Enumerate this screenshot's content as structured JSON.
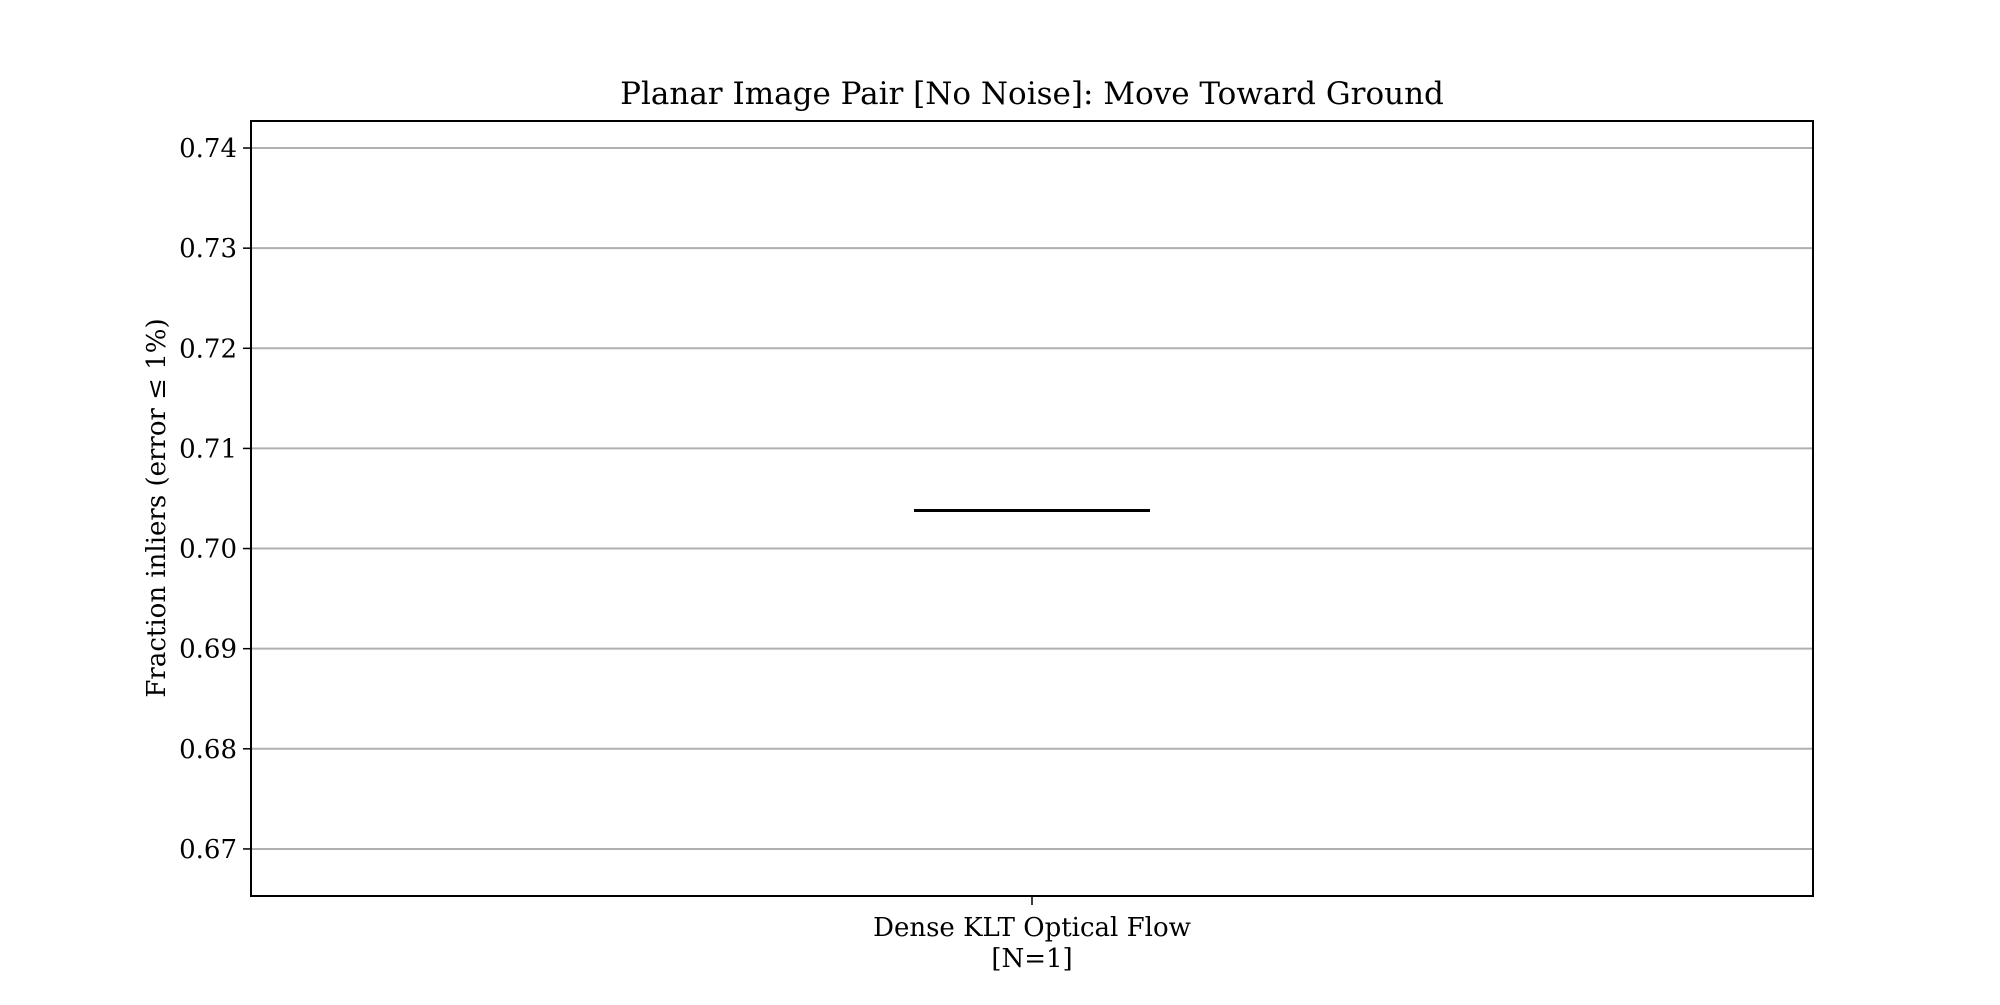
{
  "chart_data": {
    "type": "box",
    "title": "Planar Image Pair [No Noise]: Move Toward Ground",
    "ylabel": "Fraction inliers (error ≤ 1%)",
    "xlabel": "",
    "ylim": [
      0.6653,
      0.7427
    ],
    "yticks": [
      0.67,
      0.68,
      0.69,
      0.7,
      0.71,
      0.72,
      0.73,
      0.74
    ],
    "ytick_labels": [
      "0.67",
      "0.68",
      "0.69",
      "0.70",
      "0.71",
      "0.72",
      "0.73",
      "0.74"
    ],
    "grid": "horizontal",
    "categories": [
      {
        "label_line1": "Dense KLT Optical Flow",
        "label_line2": "[N=1]"
      }
    ],
    "series": [
      {
        "values": [
          0.7038
        ]
      }
    ],
    "colors": {
      "grid": "#b0b0b0",
      "median": "#000000",
      "frame": "#000000"
    }
  }
}
